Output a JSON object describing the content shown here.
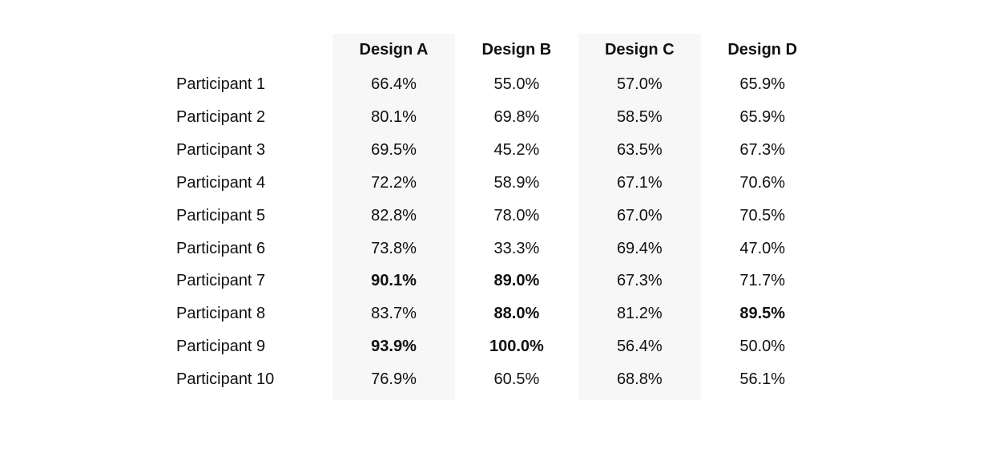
{
  "table": {
    "columns": [
      "Design A",
      "Design B",
      "Design C",
      "Design D"
    ],
    "shaded_columns": [
      0,
      2
    ],
    "rows": [
      {
        "label": "Participant 1",
        "cells": [
          "66.4%",
          "55.0%",
          "57.0%",
          "65.9%"
        ],
        "bold": [
          false,
          false,
          false,
          false
        ]
      },
      {
        "label": "Participant 2",
        "cells": [
          "80.1%",
          "69.8%",
          "58.5%",
          "65.9%"
        ],
        "bold": [
          false,
          false,
          false,
          false
        ]
      },
      {
        "label": "Participant 3",
        "cells": [
          "69.5%",
          "45.2%",
          "63.5%",
          "67.3%"
        ],
        "bold": [
          false,
          false,
          false,
          false
        ]
      },
      {
        "label": "Participant 4",
        "cells": [
          "72.2%",
          "58.9%",
          "67.1%",
          "70.6%"
        ],
        "bold": [
          false,
          false,
          false,
          false
        ]
      },
      {
        "label": "Participant 5",
        "cells": [
          "82.8%",
          "78.0%",
          "67.0%",
          "70.5%"
        ],
        "bold": [
          false,
          false,
          false,
          false
        ]
      },
      {
        "label": "Participant 6",
        "cells": [
          "73.8%",
          "33.3%",
          "69.4%",
          "47.0%"
        ],
        "bold": [
          false,
          false,
          false,
          false
        ]
      },
      {
        "label": "Participant 7",
        "cells": [
          "90.1%",
          "89.0%",
          "67.3%",
          "71.7%"
        ],
        "bold": [
          true,
          true,
          false,
          false
        ]
      },
      {
        "label": "Participant 8",
        "cells": [
          "83.7%",
          "88.0%",
          "81.2%",
          "89.5%"
        ],
        "bold": [
          false,
          true,
          false,
          true
        ]
      },
      {
        "label": "Participant 9",
        "cells": [
          "93.9%",
          "100.0%",
          "56.4%",
          "50.0%"
        ],
        "bold": [
          true,
          true,
          false,
          false
        ]
      },
      {
        "label": "Participant 10",
        "cells": [
          "76.9%",
          "60.5%",
          "68.8%",
          "56.1%"
        ],
        "bold": [
          false,
          false,
          false,
          false
        ]
      }
    ]
  }
}
